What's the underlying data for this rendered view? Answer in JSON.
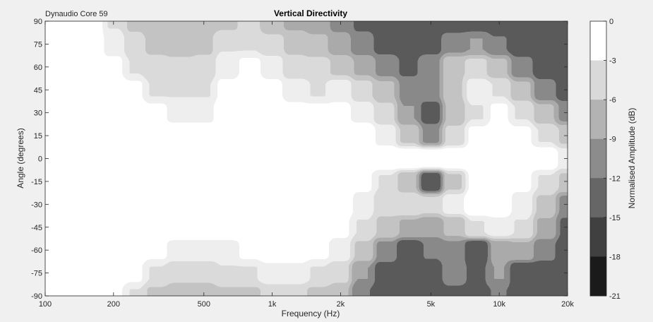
{
  "chart_data": {
    "type": "heatmap",
    "title": "Vertical Directivity",
    "subtitle": "Dynaudio Core 59",
    "xlabel": "Frequency (Hz)",
    "ylabel": "Angle (degrees)",
    "colorbar_label": "Normalised Amplitude (dB)",
    "x_scale": "log",
    "xlim": [
      100,
      20000
    ],
    "ylim": [
      -90,
      90
    ],
    "x_ticks": [
      100,
      200,
      500,
      1000,
      2000,
      5000,
      10000,
      20000
    ],
    "x_tick_labels": [
      "100",
      "200",
      "500",
      "1k",
      "2k",
      "5k",
      "10k",
      "20k"
    ],
    "y_ticks": [
      90,
      75,
      60,
      45,
      30,
      15,
      0,
      -15,
      -30,
      -45,
      -60,
      -75,
      -90
    ],
    "y_tick_labels": [
      "90",
      "75",
      "60",
      "45",
      "30",
      "15",
      "0",
      "-15",
      "-30",
      "-45",
      "-60",
      "-75",
      "-90"
    ],
    "color_levels": [
      0,
      -3,
      -6,
      -9,
      -12,
      -15,
      -18,
      -21
    ],
    "color_level_labels": [
      "0",
      "-3",
      "-6",
      "-9",
      "-12",
      "-15",
      "-18",
      "-21"
    ],
    "level_colors": [
      "#ffffff",
      "#d9d9d9",
      "#b3b3b3",
      "#8c8c8c",
      "#666666",
      "#404040",
      "#1a1a1a"
    ],
    "frequencies": [
      100,
      160,
      200,
      250,
      300,
      400,
      500,
      630,
      800,
      1000,
      1250,
      1600,
      2000,
      2500,
      3150,
      4000,
      5000,
      6300,
      8000,
      10000,
      12500,
      16000,
      20000
    ],
    "angles": [
      90,
      75,
      60,
      45,
      30,
      15,
      0,
      -15,
      -30,
      -45,
      -60,
      -75,
      -90
    ],
    "values": [
      [
        0,
        0,
        -3,
        -5,
        -6,
        -6,
        -6,
        -5,
        -4,
        -6,
        -7,
        -8,
        -10,
        -13,
        -16,
        -19,
        -18,
        -16,
        -15,
        -17,
        -19,
        -21,
        -21
      ],
      [
        0,
        0,
        -2,
        -4,
        -5,
        -6,
        -5,
        -3,
        -3,
        -4,
        -5,
        -6,
        -8,
        -11,
        -14,
        -16,
        -14,
        -10,
        -9,
        -12,
        -16,
        -19,
        -21
      ],
      [
        0,
        0,
        -1,
        -3,
        -4,
        -4,
        -4,
        -2,
        -1,
        -2,
        -4,
        -4,
        -5,
        -7,
        -10,
        -13,
        -10,
        -5,
        -4,
        -6,
        -11,
        -15,
        -19
      ],
      [
        0,
        0,
        0,
        -1,
        -3,
        -3,
        -3,
        -1,
        0,
        -1,
        -2,
        -3,
        -2,
        -4,
        -6,
        -10,
        -10,
        -5,
        -2,
        -3,
        -6,
        -11,
        -15
      ],
      [
        0,
        0,
        0,
        0,
        -1,
        -2,
        -2,
        0,
        0,
        0,
        -1,
        -1,
        -1,
        -2,
        -4,
        -9,
        -15,
        -6,
        -3,
        -1,
        -3,
        -6,
        -10
      ],
      [
        0,
        0,
        0,
        0,
        0,
        0,
        0,
        0,
        0,
        0,
        0,
        0,
        0,
        0,
        -2,
        -5,
        -10,
        -4,
        -1,
        0,
        -1,
        -3,
        -5
      ],
      [
        0,
        0,
        0,
        0,
        0,
        0,
        0,
        0,
        0,
        0,
        0,
        0,
        0,
        0,
        0,
        0,
        0,
        0,
        0,
        0,
        0,
        0,
        -2
      ],
      [
        0,
        0,
        0,
        0,
        0,
        0,
        0,
        0,
        0,
        0,
        0,
        0,
        0,
        -1,
        -3,
        -6,
        -20,
        -5,
        -1,
        0,
        -1,
        -3,
        -5
      ],
      [
        0,
        0,
        0,
        0,
        0,
        0,
        0,
        0,
        0,
        0,
        0,
        0,
        0,
        -2,
        -4,
        -3,
        -4,
        -2,
        0,
        0,
        -2,
        -5,
        -10
      ],
      [
        0,
        0,
        0,
        0,
        0,
        0,
        0,
        0,
        0,
        0,
        0,
        0,
        -1,
        -3,
        -5,
        -7,
        -8,
        -6,
        -3,
        -2,
        -3,
        -7,
        -13
      ],
      [
        0,
        0,
        0,
        0,
        -1,
        -2,
        -2,
        -2,
        -1,
        0,
        0,
        -1,
        -2,
        -5,
        -10,
        -17,
        -12,
        -10,
        -20,
        -8,
        -7,
        -11,
        -16
      ],
      [
        0,
        0,
        0,
        -1,
        -3,
        -4,
        -4,
        -3,
        -3,
        -2,
        -2,
        -3,
        -4,
        -9,
        -15,
        -19,
        -14,
        -11,
        -13,
        -9,
        -20,
        -15,
        -19
      ],
      [
        0,
        0,
        -1,
        -3,
        -5,
        -6,
        -6,
        -5,
        -5,
        -4,
        -4,
        -5,
        -6,
        -12,
        -19,
        -21,
        -16,
        -13,
        -14,
        -12,
        -16,
        -19,
        -21
      ]
    ]
  }
}
